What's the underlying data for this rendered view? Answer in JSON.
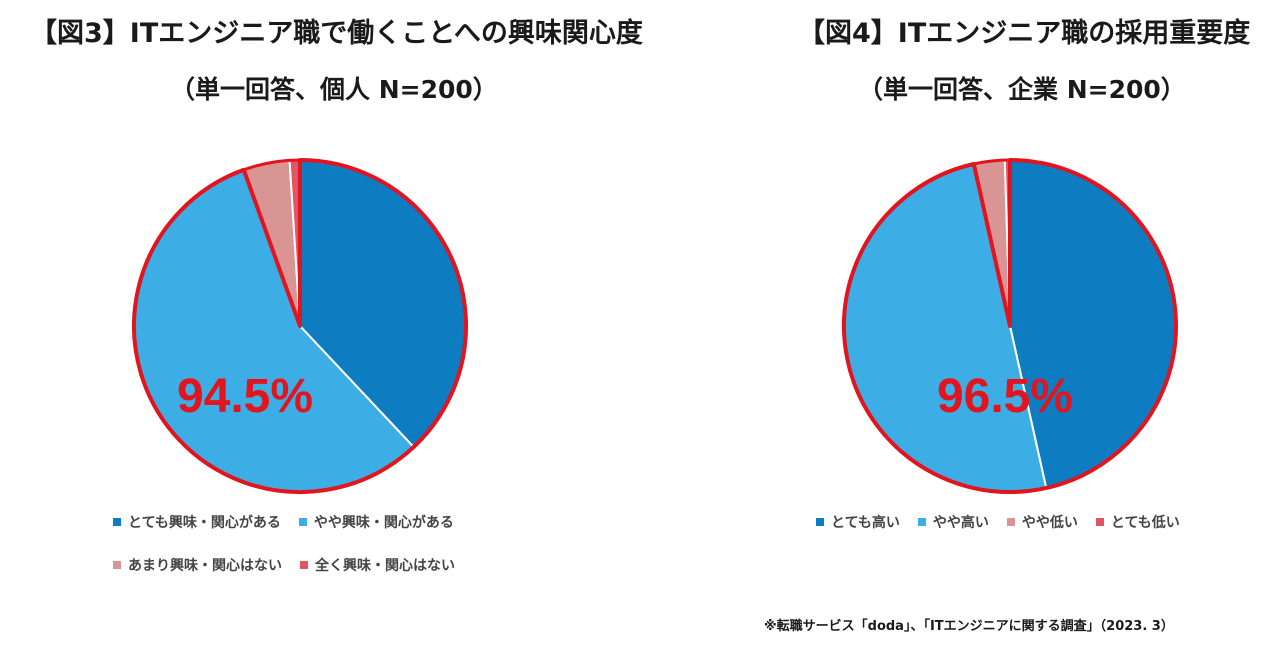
{
  "colors": {
    "very": "#0E7CC1",
    "somewhat": "#3DADE6",
    "little": "#D99593",
    "none": "#E25563",
    "outline": "#E2141E",
    "highlight": "#E2141E"
  },
  "chart_data": [
    {
      "type": "pie",
      "title": "【図3】ITエンジニア職で働くことへの興味関心度",
      "subtitle": "（単一回答、個人 N=200）",
      "highlight_label": "94.5%",
      "slices": [
        {
          "label": "とても興味・関心がある",
          "value": 38.0,
          "color_key": "very"
        },
        {
          "label": "やや興味・関心がある",
          "value": 56.5,
          "color_key": "somewhat"
        },
        {
          "label": "あまり興味・関心はない",
          "value": 4.5,
          "color_key": "little"
        },
        {
          "label": "全く興味・関心はない",
          "value": 1.0,
          "color_key": "none"
        }
      ],
      "legend_rows": [
        [
          0,
          1
        ],
        [
          2,
          3
        ]
      ]
    },
    {
      "type": "pie",
      "title": "【図4】ITエンジニア職の採用重要度",
      "subtitle": "（単一回答、企業 N=200）",
      "highlight_label": "96.5%",
      "slices": [
        {
          "label": "とても高い",
          "value": 46.5,
          "color_key": "very"
        },
        {
          "label": "やや高い",
          "value": 50.0,
          "color_key": "somewhat"
        },
        {
          "label": "やや低い",
          "value": 3.0,
          "color_key": "little"
        },
        {
          "label": "とても低い",
          "value": 0.5,
          "color_key": "none"
        }
      ],
      "legend_rows": [
        [
          0,
          1,
          2,
          3
        ]
      ]
    }
  ],
  "source": "※転職サービス「doda」、「ITエンジニアに関する調査」（2023. 3）"
}
